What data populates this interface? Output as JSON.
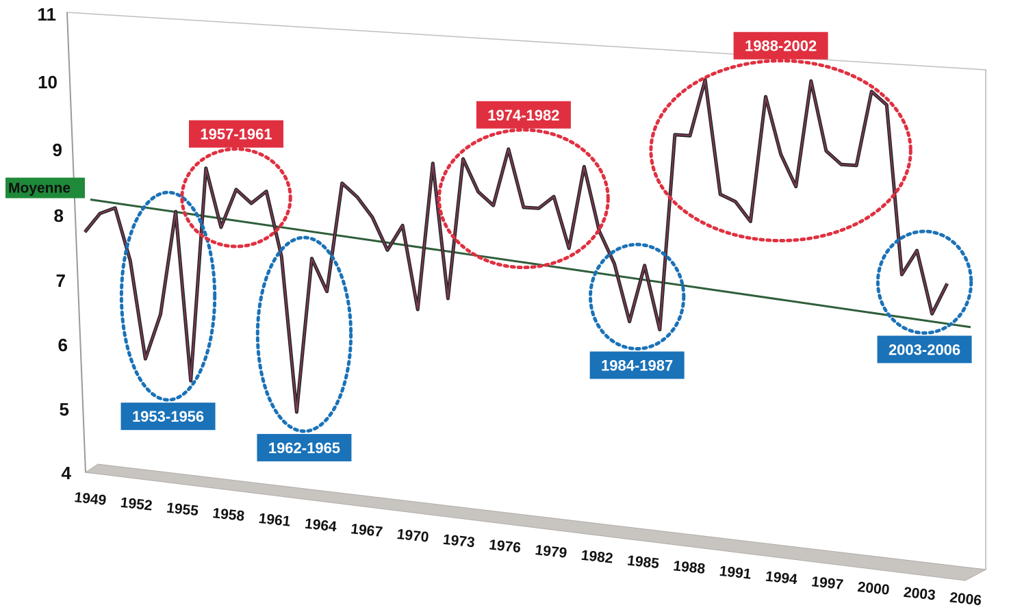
{
  "chart_data": {
    "type": "line",
    "title": "",
    "xlabel": "",
    "ylabel": "",
    "ylim": [
      4,
      11
    ],
    "yticks": [
      4,
      5,
      6,
      7,
      8,
      9,
      10,
      11
    ],
    "xtick_labels": [
      "1949",
      "1952",
      "1955",
      "1958",
      "1961",
      "1964",
      "1967",
      "1970",
      "1973",
      "1976",
      "1979",
      "1982",
      "1985",
      "1988",
      "1991",
      "1994",
      "1997",
      "2000",
      "2003",
      "2006"
    ],
    "x": [
      1949,
      1950,
      1951,
      1952,
      1953,
      1954,
      1955,
      1956,
      1957,
      1958,
      1959,
      1960,
      1961,
      1962,
      1963,
      1964,
      1965,
      1966,
      1967,
      1968,
      1969,
      1970,
      1971,
      1972,
      1973,
      1974,
      1975,
      1976,
      1977,
      1978,
      1979,
      1980,
      1981,
      1982,
      1983,
      1984,
      1985,
      1986,
      1987,
      1988,
      1989,
      1990,
      1991,
      1992,
      1993,
      1994,
      1995,
      1996,
      1997,
      1998,
      1999,
      2000,
      2001,
      2002,
      2003,
      2004,
      2005,
      2006
    ],
    "series": [
      {
        "values": [
          7.8,
          8.1,
          8.2,
          7.4,
          5.9,
          6.6,
          8.2,
          5.6,
          8.9,
          8.0,
          8.6,
          8.4,
          8.6,
          7.6,
          5.2,
          7.6,
          7.1,
          8.8,
          8.6,
          8.3,
          7.8,
          8.2,
          6.9,
          9.2,
          7.1,
          9.3,
          8.8,
          8.6,
          9.5,
          8.6,
          8.6,
          8.8,
          8.0,
          9.3,
          8.3,
          7.8,
          6.9,
          7.8,
          6.8,
          9.9,
          9.9,
          10.8,
          9.0,
          8.9,
          8.6,
          10.6,
          9.7,
          9.2,
          10.9,
          9.8,
          9.6,
          9.6,
          10.8,
          10.6,
          7.9,
          8.3,
          7.3,
          7.8
        ]
      }
    ],
    "trend": {
      "label": "Moyenne",
      "start": 8.3,
      "end": 7.1,
      "color": "#2e5e3a"
    },
    "annotations": [
      {
        "text": "1953-1956",
        "style": "dry",
        "from": 1953,
        "to": 1956,
        "label_pos": "below"
      },
      {
        "text": "1957-1961",
        "style": "wet",
        "from": 1957,
        "to": 1961,
        "label_pos": "above"
      },
      {
        "text": "1962-1965",
        "style": "dry",
        "from": 1962,
        "to": 1965,
        "label_pos": "below"
      },
      {
        "text": "1974-1982",
        "style": "wet",
        "from": 1974,
        "to": 1982,
        "label_pos": "above"
      },
      {
        "text": "1984-1987",
        "style": "dry",
        "from": 1984,
        "to": 1987,
        "label_pos": "below"
      },
      {
        "text": "1988-2002",
        "style": "wet",
        "from": 1988,
        "to": 2002,
        "label_pos": "above"
      },
      {
        "text": "2003-2006",
        "style": "dry",
        "from": 2003,
        "to": 2006,
        "label_pos": "below"
      }
    ],
    "grid": false,
    "legend": "none",
    "colors": {
      "line": "#7a3a55",
      "line_shadow": "#222222",
      "wet": "#e03040",
      "dry": "#1a72b8",
      "moyenne_bg": "#1e8a3a",
      "floor": "#c8c4c0"
    }
  }
}
